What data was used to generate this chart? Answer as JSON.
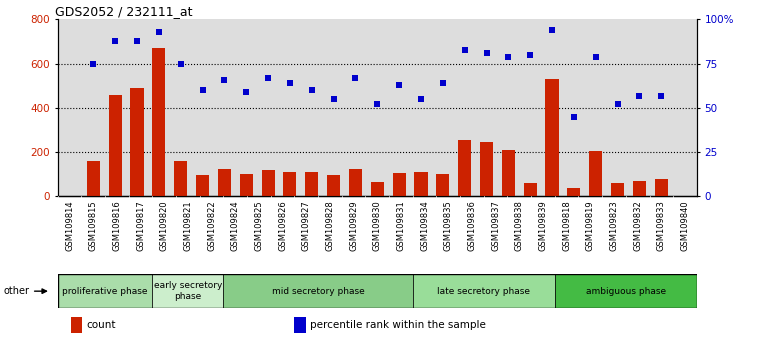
{
  "title": "GDS2052 / 232111_at",
  "categories": [
    "GSM109814",
    "GSM109815",
    "GSM109816",
    "GSM109817",
    "GSM109820",
    "GSM109821",
    "GSM109822",
    "GSM109824",
    "GSM109825",
    "GSM109826",
    "GSM109827",
    "GSM109828",
    "GSM109829",
    "GSM109830",
    "GSM109831",
    "GSM109834",
    "GSM109835",
    "GSM109836",
    "GSM109837",
    "GSM109838",
    "GSM109839",
    "GSM109818",
    "GSM109819",
    "GSM109823",
    "GSM109832",
    "GSM109833",
    "GSM109840"
  ],
  "bar_values": [
    160,
    460,
    490,
    670,
    160,
    95,
    125,
    100,
    120,
    110,
    110,
    95,
    125,
    65,
    105,
    110,
    100,
    255,
    245,
    210,
    60,
    530,
    40,
    205,
    60,
    70,
    80
  ],
  "scatter_values": [
    75,
    88,
    88,
    93,
    75,
    60,
    66,
    59,
    67,
    64,
    60,
    55,
    67,
    52,
    63,
    55,
    64,
    83,
    81,
    79,
    80,
    94,
    45,
    79,
    52,
    57,
    57
  ],
  "phases": [
    {
      "label": "proliferative phase",
      "start": 0,
      "end": 3,
      "color": "#aaddaa"
    },
    {
      "label": "early secretory\nphase",
      "start": 4,
      "end": 6,
      "color": "#cceecc"
    },
    {
      "label": "mid secretory phase",
      "start": 7,
      "end": 14,
      "color": "#88cc88"
    },
    {
      "label": "late secretory phase",
      "start": 15,
      "end": 20,
      "color": "#99dd99"
    },
    {
      "label": "ambiguous phase",
      "start": 21,
      "end": 26,
      "color": "#44bb44"
    }
  ],
  "bar_color": "#cc2200",
  "scatter_color": "#0000cc",
  "plot_bg": "#dddddd",
  "xtick_bg": "#cccccc",
  "ylim_left": [
    0,
    800
  ],
  "ylim_right": [
    0,
    100
  ],
  "yticks_left": [
    0,
    200,
    400,
    600,
    800
  ],
  "yticks_right": [
    0,
    25,
    50,
    75,
    100
  ],
  "ytick_labels_right": [
    "0",
    "25",
    "50",
    "75",
    "100%"
  ],
  "other_label": "other",
  "legend_items": [
    {
      "label": "count",
      "color": "#cc2200"
    },
    {
      "label": "percentile rank within the sample",
      "color": "#0000cc"
    }
  ]
}
